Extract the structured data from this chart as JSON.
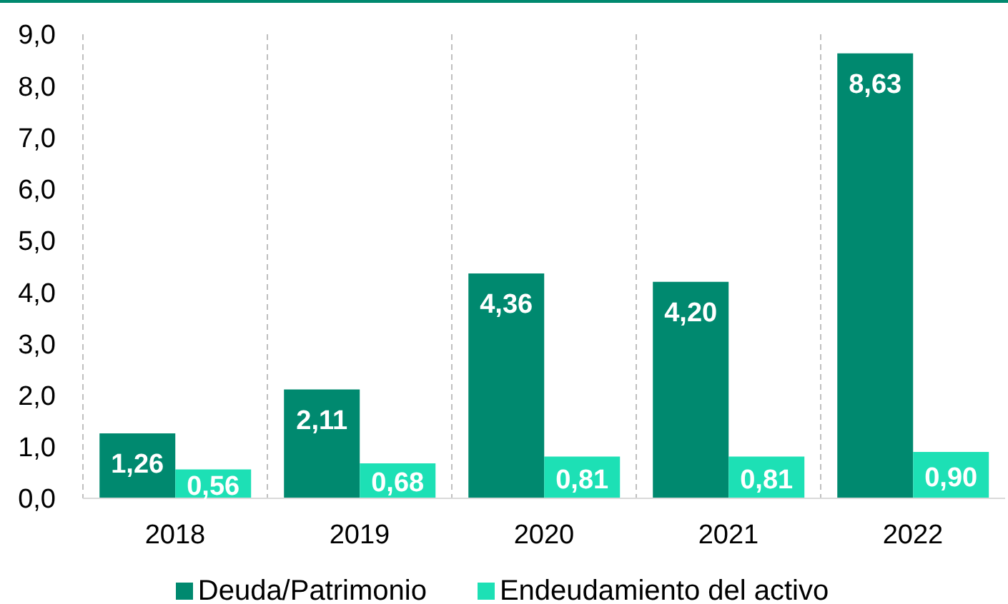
{
  "chart_data": {
    "type": "bar",
    "categories": [
      "2018",
      "2019",
      "2020",
      "2021",
      "2022"
    ],
    "series": [
      {
        "name": "Deuda/Patrimonio",
        "color": "#00896f",
        "values": [
          1.26,
          2.11,
          4.36,
          4.2,
          8.63
        ],
        "value_labels": [
          "1,26",
          "2,11",
          "4,36",
          "4,20",
          "8,63"
        ]
      },
      {
        "name": "Endeudamiento del activo",
        "color": "#1de0b5",
        "values": [
          0.56,
          0.68,
          0.81,
          0.81,
          0.9
        ],
        "value_labels": [
          "0,56",
          "0,68",
          "0,81",
          "0,81",
          "0,90"
        ]
      }
    ],
    "ylim": [
      0,
      9
    ],
    "yticks": [
      {
        "value": 0,
        "label": "0,0"
      },
      {
        "value": 1,
        "label": "1,0"
      },
      {
        "value": 2,
        "label": "2,0"
      },
      {
        "value": 3,
        "label": "3,0"
      },
      {
        "value": 4,
        "label": "4,0"
      },
      {
        "value": 5,
        "label": "5,0"
      },
      {
        "value": 6,
        "label": "6,0"
      },
      {
        "value": 7,
        "label": "7,0"
      },
      {
        "value": 8,
        "label": "8,0"
      },
      {
        "value": 9,
        "label": "9,0"
      }
    ],
    "grid": "x",
    "legend": "bottom"
  }
}
